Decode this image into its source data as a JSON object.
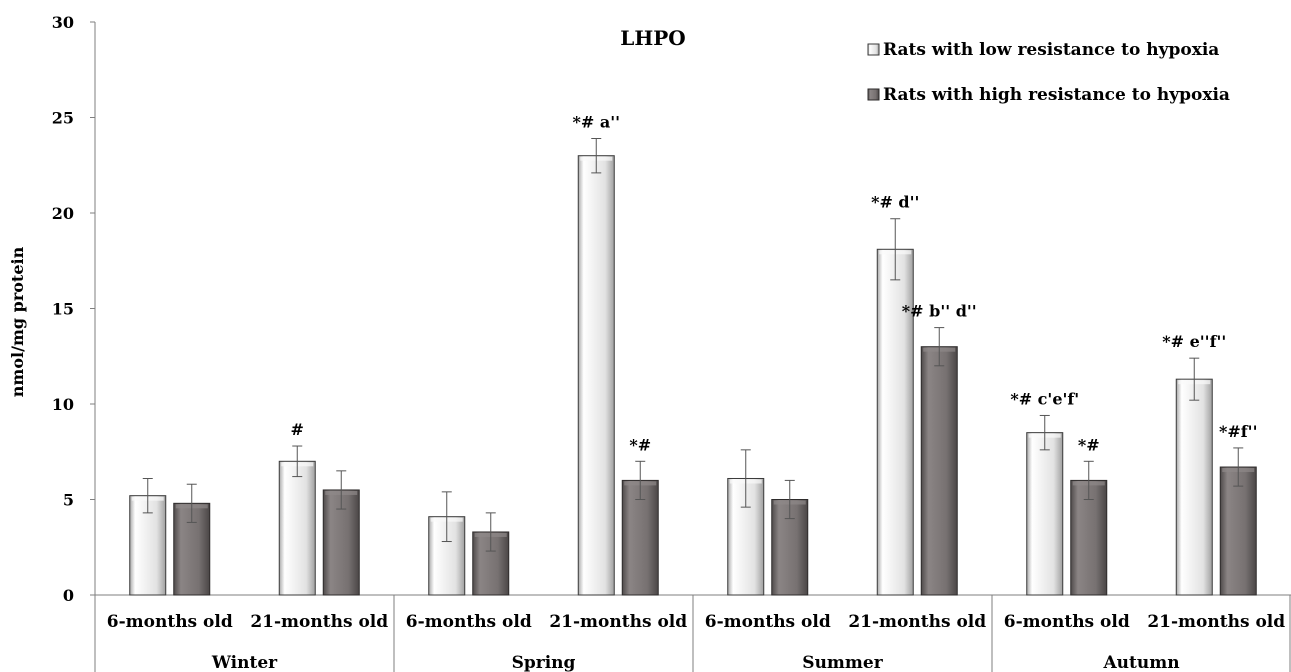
{
  "chart_data": {
    "type": "bar",
    "title": "LHPO",
    "ylabel": "nmol/mg protein",
    "xlabel": "",
    "ylim": [
      0,
      30
    ],
    "yticks": [
      0,
      5,
      10,
      15,
      20,
      25,
      30
    ],
    "grid": false,
    "legend_position": "top-right",
    "groups": [
      "Winter",
      "Spring",
      "Summer",
      "Autumn"
    ],
    "categories": [
      "6-months old",
      "21-months old",
      "6-months old",
      "21-months old",
      "6-months old",
      "21-months old",
      "6-months old",
      "21-months old"
    ],
    "series": [
      {
        "name": "Rats with low resistance to hypoxia",
        "color": "#e4e4e4",
        "values": [
          5.2,
          7.0,
          4.1,
          23.0,
          6.1,
          18.1,
          8.5,
          11.3
        ],
        "errors": [
          0.9,
          0.8,
          1.3,
          0.9,
          1.5,
          1.6,
          0.9,
          1.1
        ],
        "annotations": [
          "",
          "#",
          "",
          "*# a''",
          "",
          "*# d''",
          "*# c'e'f'",
          "*# e''f''"
        ]
      },
      {
        "name": "Rats with high resistance to hypoxia",
        "color": "#7a7474",
        "values": [
          4.8,
          5.5,
          3.3,
          6.0,
          5.0,
          13.0,
          6.0,
          6.7
        ],
        "errors": [
          1.0,
          1.0,
          1.0,
          1.0,
          1.0,
          1.0,
          1.0,
          1.0
        ],
        "annotations": [
          "",
          "",
          "",
          "*#",
          "",
          "*# b'' d''",
          "*#",
          "*#f''"
        ]
      }
    ]
  }
}
